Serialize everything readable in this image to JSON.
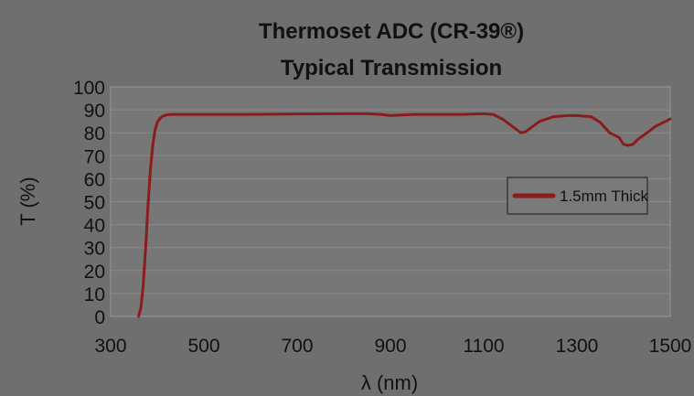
{
  "chart_data": {
    "type": "line",
    "title": "Thermoset ADC (CR-39®)",
    "subtitle": "Typical Transmission",
    "xlabel": "λ (nm)",
    "ylabel": "T (%)",
    "xlim": [
      300,
      1500
    ],
    "ylim": [
      0,
      100
    ],
    "xticks": [
      300,
      500,
      700,
      900,
      1100,
      1300,
      1500
    ],
    "yticks": [
      0,
      10,
      20,
      30,
      40,
      50,
      60,
      70,
      80,
      90,
      100
    ],
    "grid": true,
    "legend_position": "right",
    "colors": {
      "background": "#6f6f6f",
      "plot_area": "#777777",
      "gridline": "#8a8a8a",
      "line": "#8b1c1c",
      "legend_bg": "#7a7a7a",
      "text": "#111111"
    },
    "series": [
      {
        "name": "1.5mm Thick",
        "x": [
          360,
          365,
          370,
          375,
          380,
          385,
          390,
          395,
          400,
          405,
          410,
          415,
          420,
          430,
          450,
          500,
          600,
          700,
          800,
          850,
          880,
          900,
          950,
          1000,
          1050,
          1100,
          1120,
          1140,
          1160,
          1180,
          1190,
          1200,
          1220,
          1250,
          1280,
          1300,
          1330,
          1350,
          1370,
          1390,
          1400,
          1410,
          1420,
          1430,
          1450,
          1470,
          1490,
          1500
        ],
        "y": [
          0,
          4,
          14,
          30,
          48,
          63,
          74,
          81,
          84.5,
          86,
          87,
          87.5,
          87.8,
          88,
          88,
          88,
          88,
          88.2,
          88.3,
          88.3,
          88,
          87.5,
          88,
          88,
          88,
          88.3,
          88,
          86,
          83,
          80,
          80.5,
          82,
          85,
          87,
          87.5,
          87.5,
          87,
          84.5,
          80,
          78,
          75,
          74.5,
          75,
          77,
          80,
          83,
          85,
          86
        ]
      }
    ]
  }
}
